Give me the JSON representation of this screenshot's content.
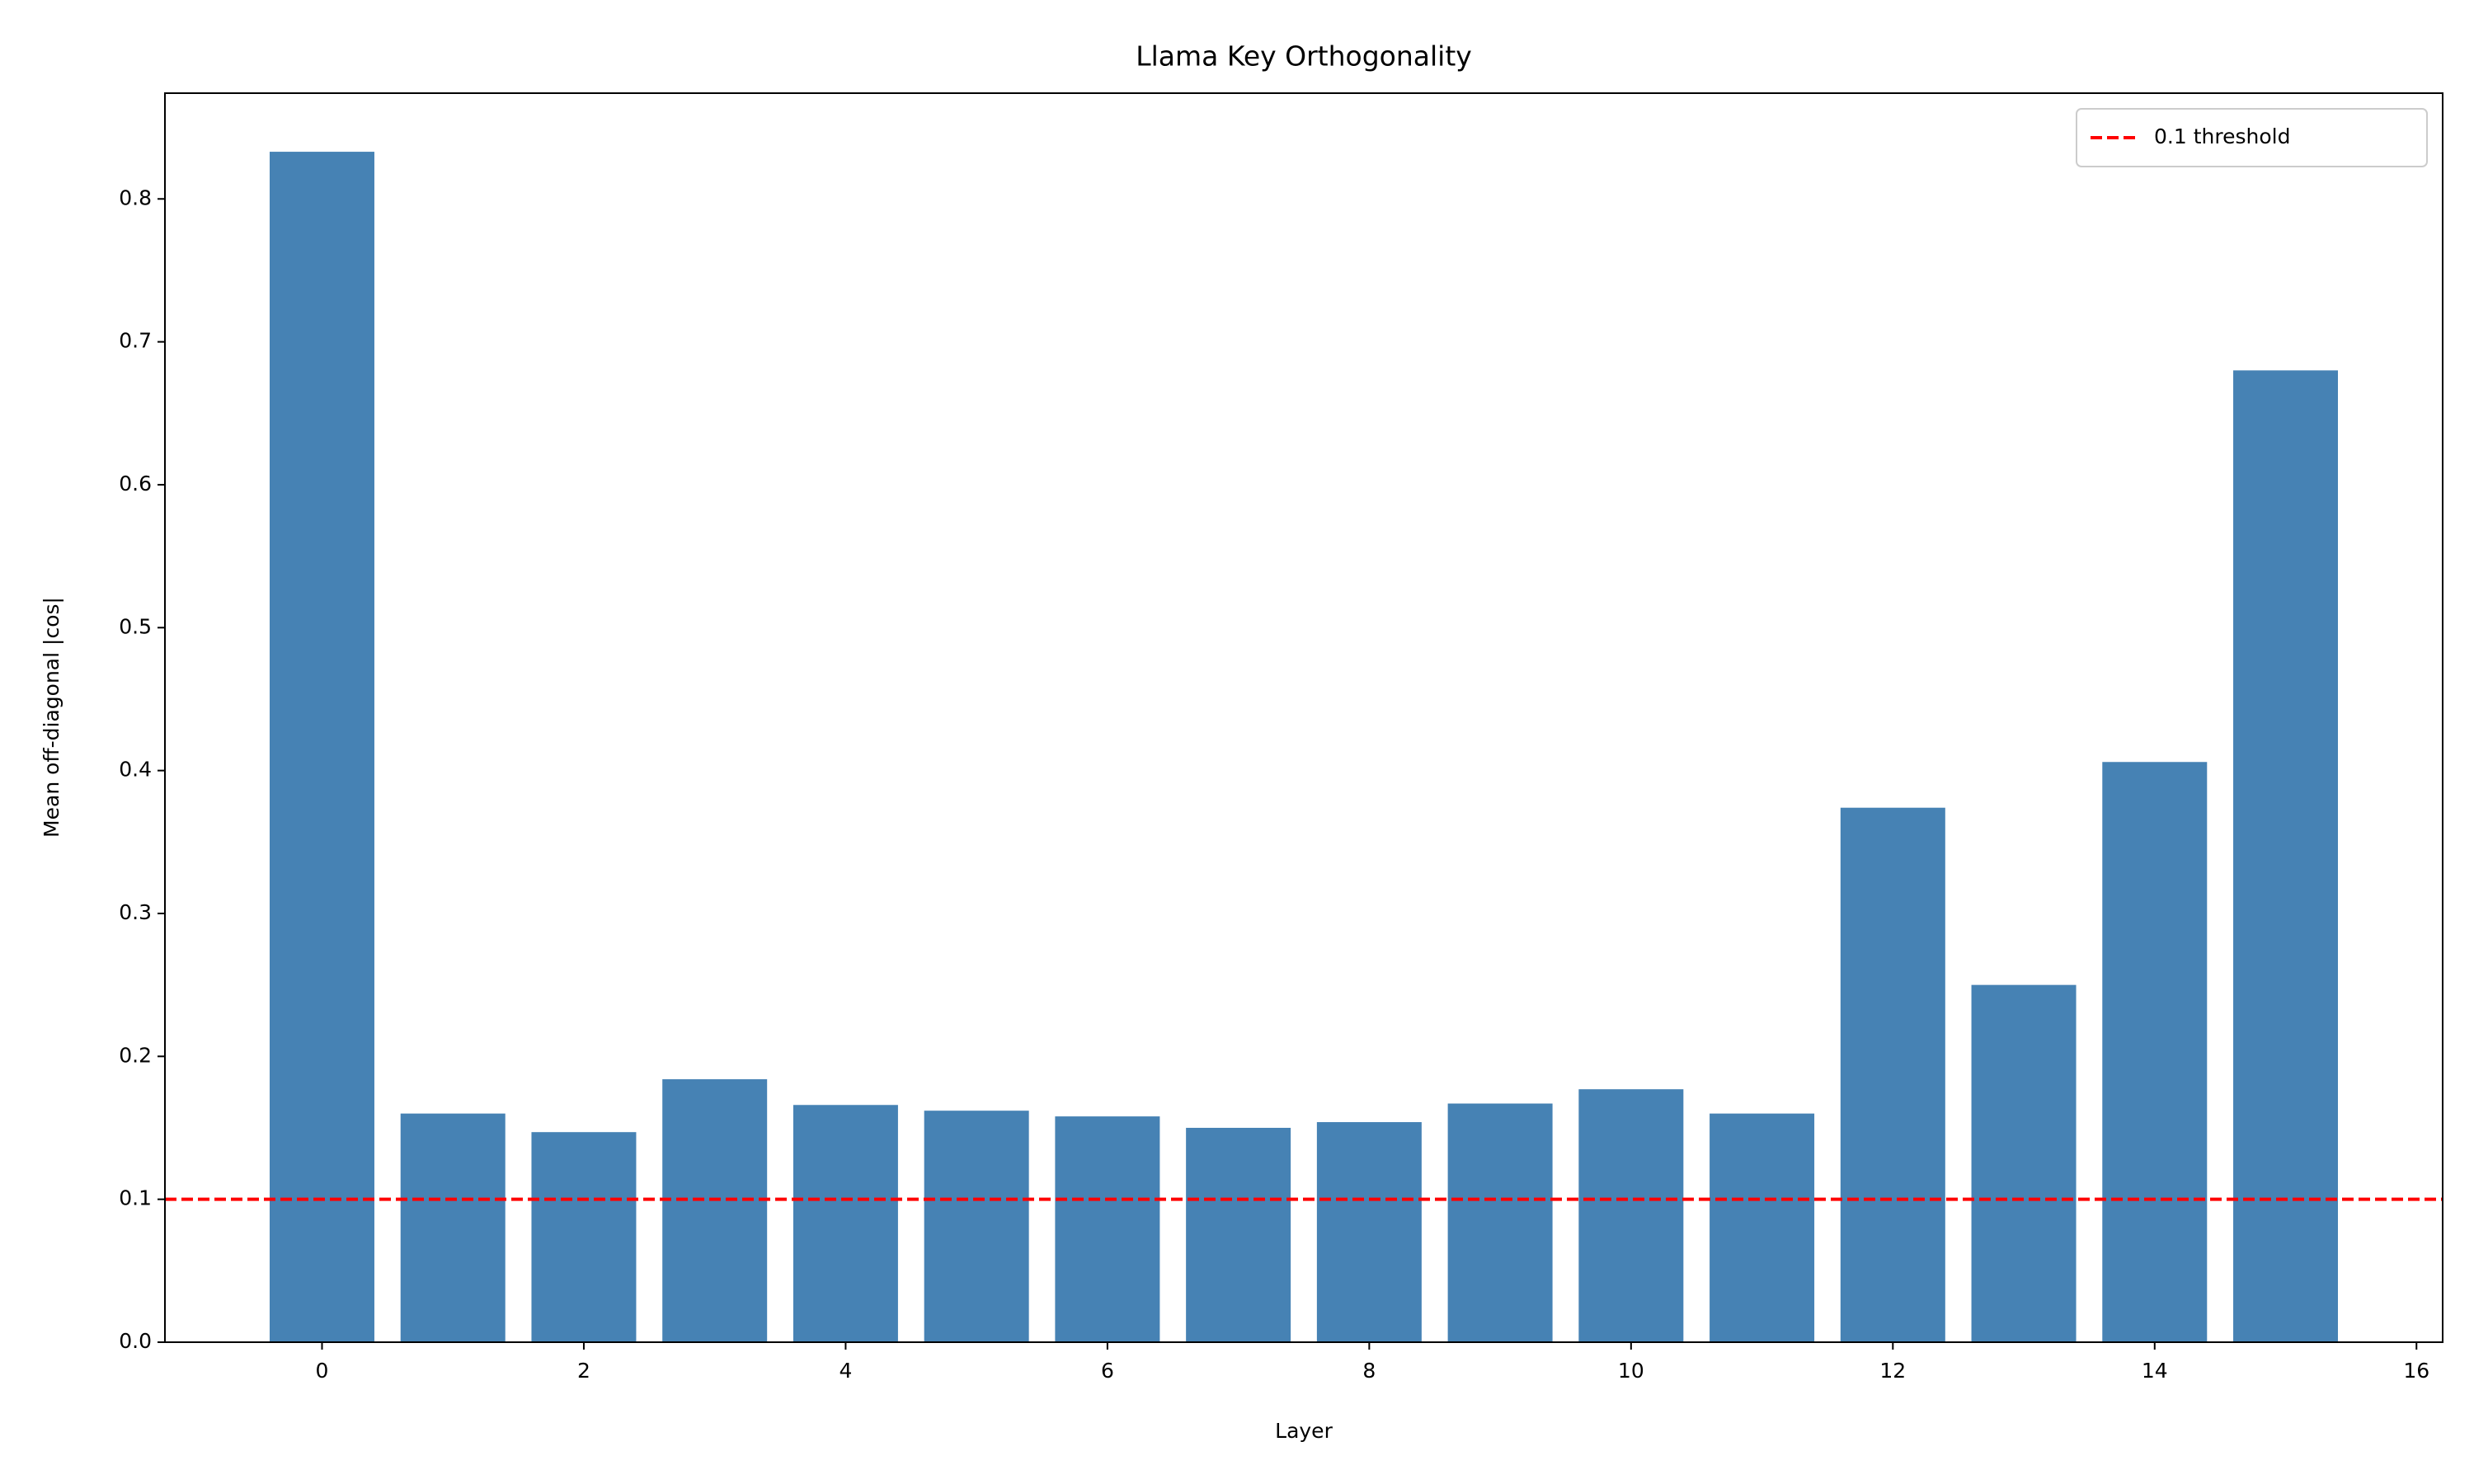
{
  "chart_data": {
    "type": "bar",
    "title": "Llama Key Orthogonality",
    "x_label": "Layer",
    "y_label": "Mean off-diagonal |cos|",
    "x": [
      0,
      1,
      2,
      3,
      4,
      5,
      6,
      7,
      8,
      9,
      10,
      11,
      12,
      13,
      14,
      15
    ],
    "values": [
      0.833,
      0.16,
      0.147,
      0.184,
      0.166,
      0.162,
      0.158,
      0.15,
      0.154,
      0.167,
      0.177,
      0.16,
      0.374,
      0.25,
      0.406,
      0.68
    ],
    "color": "#4682b4",
    "bar_width": 0.8,
    "xlim": [
      -1.2,
      16.2
    ],
    "xticks": [
      0,
      2,
      4,
      6,
      8,
      10,
      12,
      14,
      16
    ],
    "ylim": [
      0,
      0.874
    ],
    "yticks": [
      {
        "value": 0,
        "label": "0.0"
      },
      0.1,
      0.2,
      0.3,
      0.4,
      0.5,
      0.6,
      0.7,
      0.8
    ],
    "reference_lines": [
      {
        "name": "0.1 threshold",
        "y": 0.1,
        "color": "#ff0000",
        "style": "dashed"
      }
    ],
    "legend": "upper right",
    "grid": false
  }
}
